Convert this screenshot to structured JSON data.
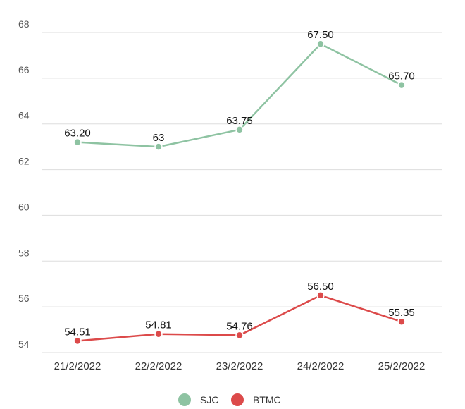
{
  "chart_data": {
    "type": "line",
    "categories": [
      "21/2/2022",
      "22/2/2022",
      "23/2/2022",
      "24/2/2022",
      "25/2/2022"
    ],
    "series": [
      {
        "name": "SJC",
        "color": "#8ec3a2",
        "values": [
          63.2,
          63,
          63.75,
          67.5,
          65.7
        ],
        "labels": [
          "63.20",
          "63",
          "63.75",
          "67.50",
          "65.70"
        ]
      },
      {
        "name": "BTMC",
        "color": "#dc4a4a",
        "values": [
          54.51,
          54.81,
          54.76,
          56.5,
          55.35
        ],
        "labels": [
          "54.51",
          "54.81",
          "54.76",
          "56.50",
          "55.35"
        ]
      }
    ],
    "ylim": [
      54,
      68
    ],
    "yticks": [
      54,
      56,
      58,
      60,
      62,
      64,
      66,
      68
    ],
    "grid": true,
    "legend": "bottom-center",
    "title": "",
    "xlabel": "",
    "ylabel": ""
  }
}
